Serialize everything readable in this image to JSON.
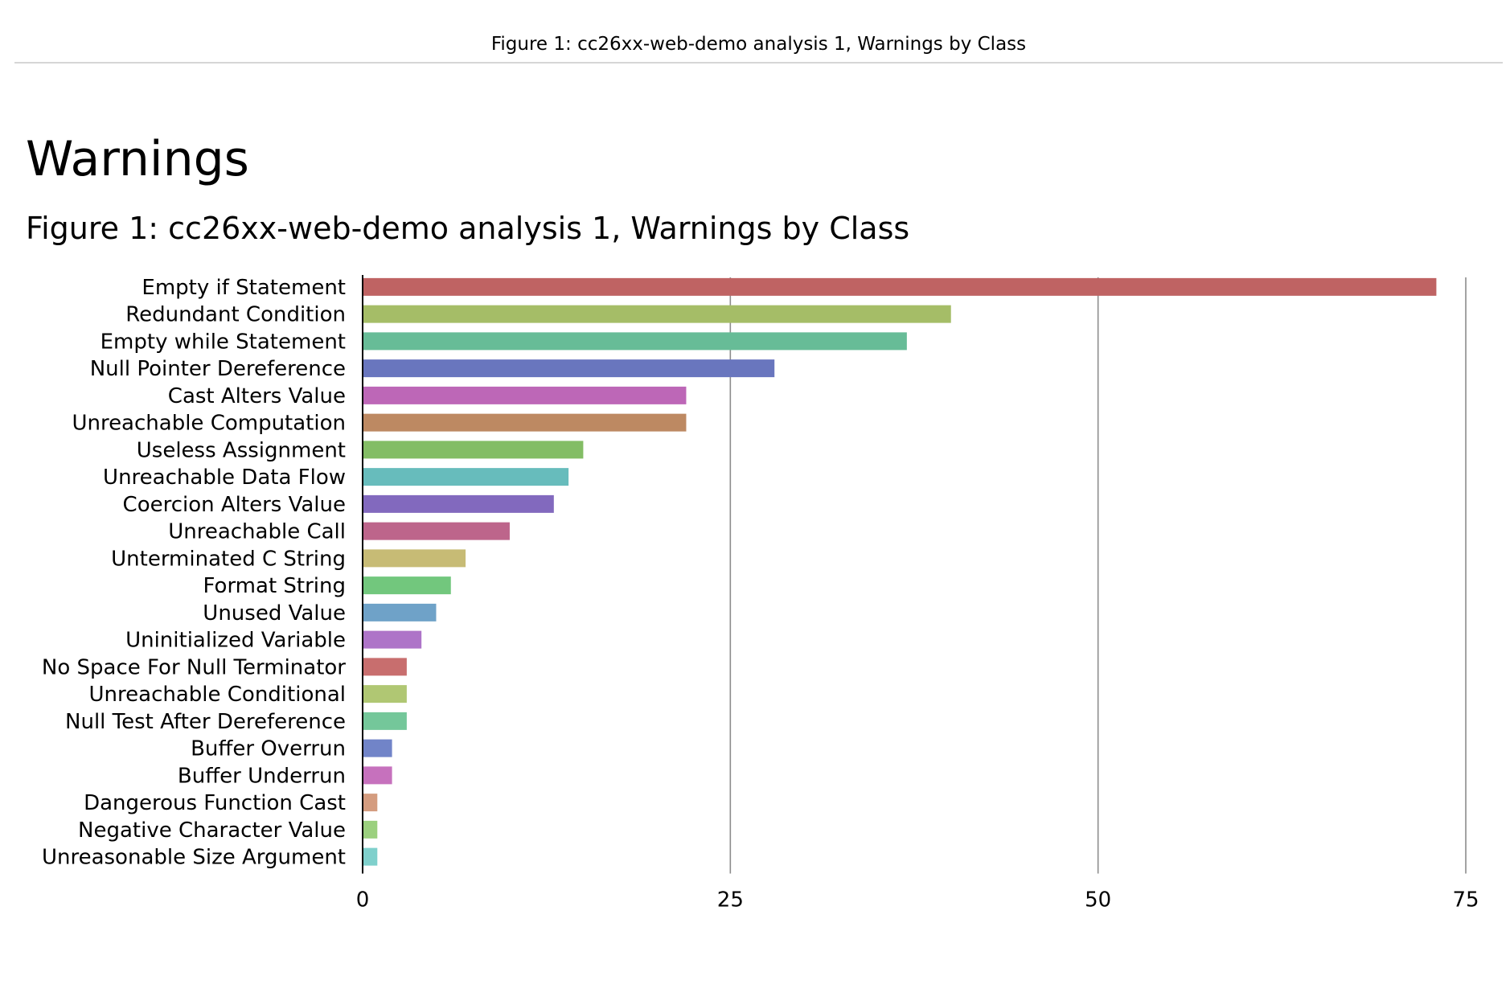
{
  "header": {
    "title": "Figure 1: cc26xx-web-demo analysis 1, Warnings by Class"
  },
  "section": {
    "heading": "Warnings",
    "caption": "Figure 1: cc26xx-web-demo analysis 1, Warnings by Class"
  },
  "chart_data": {
    "type": "bar",
    "orientation": "horizontal",
    "title": "",
    "xlabel": "",
    "ylabel": "",
    "xlim": [
      0,
      75
    ],
    "xticks": [
      0,
      25,
      50,
      75
    ],
    "grid": "vertical",
    "categories": [
      "Empty if Statement",
      "Redundant Condition",
      "Empty while Statement",
      "Null Pointer Dereference",
      "Cast Alters Value",
      "Unreachable Computation",
      "Useless Assignment",
      "Unreachable Data Flow",
      "Coercion Alters Value",
      "Unreachable Call",
      "Unterminated C String",
      "Format String",
      "Unused Value",
      "Uninitialized Variable",
      "No Space For Null Terminator",
      "Unreachable Conditional",
      "Null Test After Dereference",
      "Buffer Overrun",
      "Buffer Underrun",
      "Dangerous Function Cast",
      "Negative Character Value",
      "Unreasonable Size Argument"
    ],
    "values": [
      73,
      40,
      37,
      28,
      22,
      22,
      15,
      14,
      13,
      10,
      7,
      6,
      5,
      4,
      3,
      3,
      3,
      2,
      2,
      1,
      1,
      1
    ],
    "colors": [
      "#bf6363",
      "#a5bd67",
      "#67bc97",
      "#6976be",
      "#bd67b7",
      "#bd8962",
      "#83bd65",
      "#67bcbc",
      "#8269be",
      "#bd658b",
      "#c7bb75",
      "#72c77d",
      "#6fa2c8",
      "#ae74c8",
      "#c86e6e",
      "#b0c773",
      "#74c79a",
      "#7184c8",
      "#c671bd",
      "#d49c7f",
      "#9bd07e",
      "#7fd0cc"
    ]
  }
}
